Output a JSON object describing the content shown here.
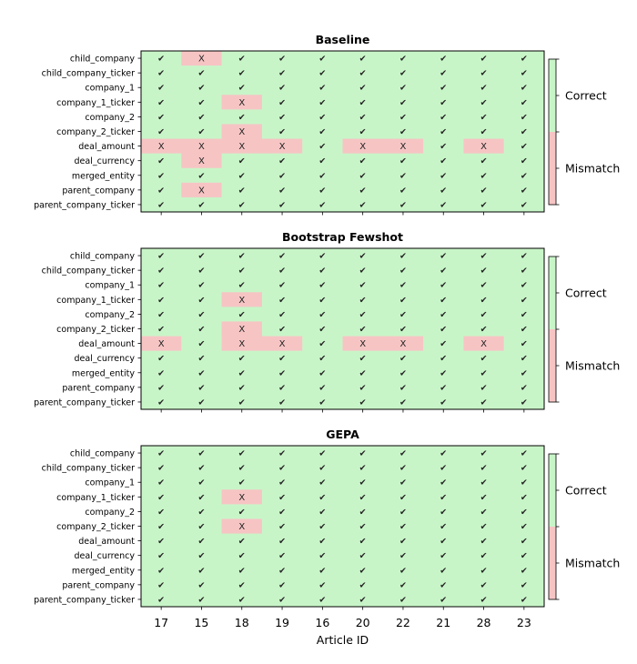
{
  "chart_data": {
    "type": "heatmap",
    "xlabel": "Article ID",
    "x_categories": [
      "17",
      "15",
      "18",
      "19",
      "16",
      "20",
      "22",
      "21",
      "28",
      "23"
    ],
    "y_categories": [
      "child_company",
      "child_company_ticker",
      "company_1",
      "company_1_ticker",
      "company_2",
      "company_2_ticker",
      "deal_amount",
      "deal_currency",
      "merged_entity",
      "parent_company",
      "parent_company_ticker"
    ],
    "legend": {
      "labels": [
        "Correct",
        "Mismatch"
      ],
      "placement": "right"
    },
    "colors": {
      "correct": "#c8f5c8",
      "mismatch": "#f7c4c4",
      "mark": "#222222"
    },
    "marks": {
      "correct": "✔",
      "mismatch": "X"
    },
    "panels": [
      {
        "title": "Baseline",
        "mismatches": [
          {
            "field": "child_company",
            "article": "15"
          },
          {
            "field": "company_1_ticker",
            "article": "18"
          },
          {
            "field": "company_2_ticker",
            "article": "18"
          },
          {
            "field": "deal_amount",
            "article": "17"
          },
          {
            "field": "deal_amount",
            "article": "15"
          },
          {
            "field": "deal_amount",
            "article": "18"
          },
          {
            "field": "deal_amount",
            "article": "19"
          },
          {
            "field": "deal_amount",
            "article": "20"
          },
          {
            "field": "deal_amount",
            "article": "22"
          },
          {
            "field": "deal_amount",
            "article": "28"
          },
          {
            "field": "deal_currency",
            "article": "15"
          },
          {
            "field": "parent_company",
            "article": "15"
          }
        ]
      },
      {
        "title": "Bootstrap Fewshot",
        "mismatches": [
          {
            "field": "company_1_ticker",
            "article": "18"
          },
          {
            "field": "company_2_ticker",
            "article": "18"
          },
          {
            "field": "deal_amount",
            "article": "17"
          },
          {
            "field": "deal_amount",
            "article": "18"
          },
          {
            "field": "deal_amount",
            "article": "19"
          },
          {
            "field": "deal_amount",
            "article": "20"
          },
          {
            "field": "deal_amount",
            "article": "22"
          },
          {
            "field": "deal_amount",
            "article": "28"
          }
        ]
      },
      {
        "title": "GEPA",
        "mismatches": [
          {
            "field": "company_1_ticker",
            "article": "18"
          },
          {
            "field": "company_2_ticker",
            "article": "18"
          }
        ]
      }
    ]
  }
}
